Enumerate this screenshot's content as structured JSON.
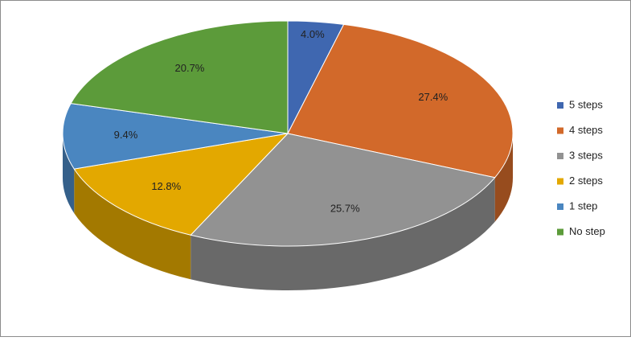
{
  "chart_data": {
    "type": "pie3d",
    "categories": [
      "5 steps",
      "4 steps",
      "3 steps",
      "2 steps",
      "1 step",
      "No step"
    ],
    "values": [
      4.0,
      27.4,
      25.7,
      12.8,
      9.4,
      20.7
    ],
    "value_labels": [
      "4.0%",
      "27.4%",
      "25.7%",
      "12.8%",
      "9.4%",
      "20.7%"
    ],
    "colors": [
      "#3f67b0",
      "#d2692a",
      "#929292",
      "#e3a800",
      "#4a86c0",
      "#5c9b3a"
    ],
    "legend": "right"
  }
}
